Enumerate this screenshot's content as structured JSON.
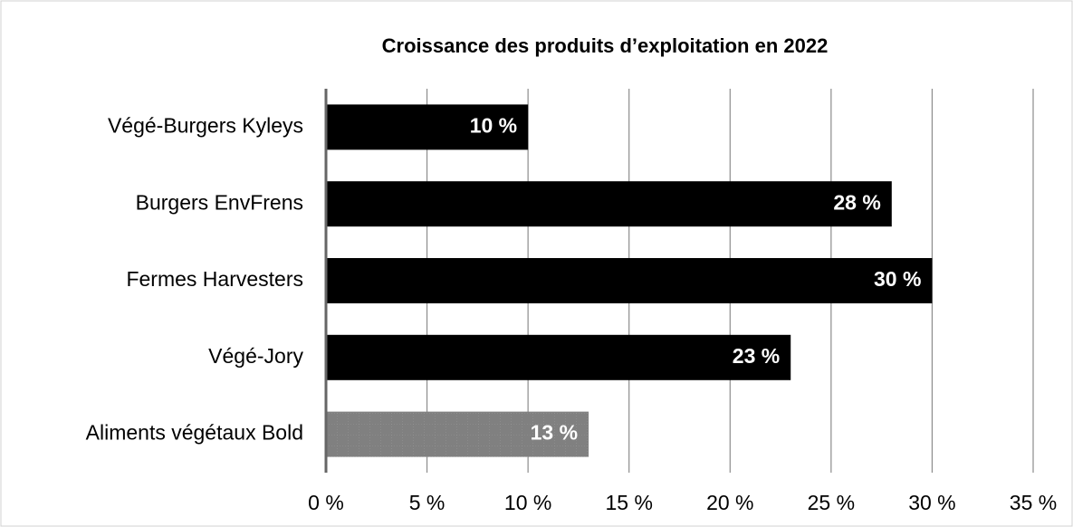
{
  "chart_data": {
    "type": "bar",
    "orientation": "horizontal",
    "title": "Croissance des produits d’exploitation en 2022",
    "categories": [
      "Végé-Burgers Kyleys",
      "Burgers EnvFrens",
      "Fermes Harvesters",
      "Végé-Jory",
      "Aliments végétaux Bold"
    ],
    "values": [
      10,
      28,
      30,
      23,
      13
    ],
    "value_labels": [
      "10 %",
      "28 %",
      "30 %",
      "23 %",
      "13 %"
    ],
    "colors": [
      "#000000",
      "#000000",
      "#000000",
      "#000000",
      "#808080"
    ],
    "xlim": [
      0,
      35
    ],
    "xticks": [
      {
        "value": 0,
        "label": "0 %"
      },
      {
        "value": 5,
        "label": "5 %"
      },
      {
        "value": 10,
        "label": "10 %"
      },
      {
        "value": 15,
        "label": "15 %"
      },
      {
        "value": 20,
        "label": "20 %"
      },
      {
        "value": 25,
        "label": "25 %"
      },
      {
        "value": 30,
        "label": "30 %"
      },
      {
        "value": 35,
        "label": "35 %"
      }
    ],
    "grid": true
  }
}
